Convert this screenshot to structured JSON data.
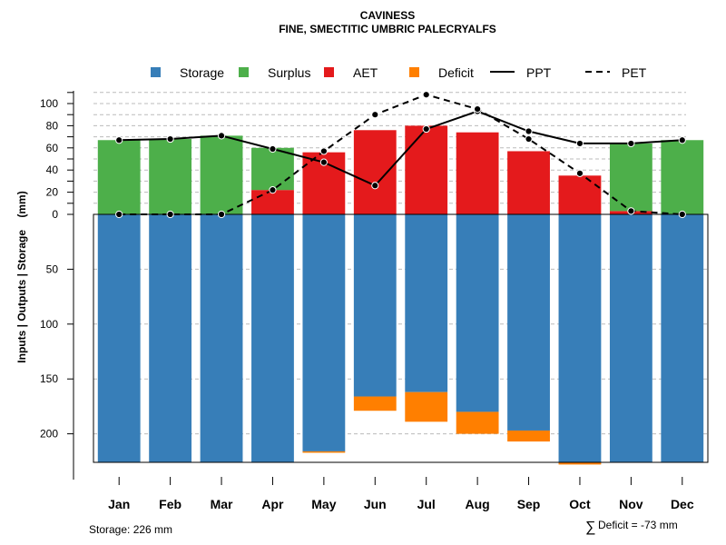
{
  "title": "CAVINESS",
  "subtitle": "FINE, SMECTITIC UMBRIC PALECRYALFS",
  "colors": {
    "storage": "#377eb8",
    "surplus": "#4daf4a",
    "aet": "#e41a1c",
    "deficit": "#ff7f00",
    "grid": "#bbbbbb"
  },
  "footer": {
    "storage_note": "Storage: 226 mm",
    "deficit_symbol": "∑",
    "deficit_note": "Deficit = -73 mm"
  },
  "chart_data": {
    "type": "bar",
    "categories": [
      "Jan",
      "Feb",
      "Mar",
      "Apr",
      "May",
      "Jun",
      "Jul",
      "Aug",
      "Sep",
      "Oct",
      "Nov",
      "Dec"
    ],
    "ylabel": "Inputs | Outputs | Storage    (mm)",
    "upper_ticks": [
      0,
      20,
      40,
      60,
      80,
      100
    ],
    "lower_ticks": [
      50,
      100,
      150,
      200
    ],
    "ylim_upper": [
      0,
      110
    ],
    "ylim_lower": [
      0,
      226
    ],
    "legend": [
      {
        "label": "Storage",
        "kind": "square",
        "color_key": "storage"
      },
      {
        "label": "Surplus",
        "kind": "square",
        "color_key": "surplus"
      },
      {
        "label": "AET",
        "kind": "square",
        "color_key": "aet"
      },
      {
        "label": "Deficit",
        "kind": "square",
        "color_key": "deficit"
      },
      {
        "label": "PPT",
        "kind": "solid"
      },
      {
        "label": "PET",
        "kind": "dashed"
      }
    ],
    "series": [
      {
        "name": "AET",
        "values": [
          0,
          0,
          0,
          22,
          56,
          76,
          80,
          74,
          57,
          35,
          3,
          0
        ]
      },
      {
        "name": "Surplus",
        "values": [
          67,
          68,
          71,
          38,
          0,
          0,
          0,
          0,
          0,
          0,
          61,
          67
        ]
      },
      {
        "name": "Storage",
        "values": [
          226,
          226,
          226,
          226,
          216,
          166,
          162,
          180,
          197,
          226,
          226,
          226
        ]
      },
      {
        "name": "Deficit",
        "values": [
          0,
          0,
          0,
          0,
          1,
          13,
          27,
          20,
          10,
          2,
          0,
          0
        ]
      },
      {
        "name": "PPT",
        "values": [
          67,
          68,
          71,
          59,
          47,
          26,
          77,
          93,
          75,
          64,
          64,
          67
        ]
      },
      {
        "name": "PET",
        "values": [
          0,
          0,
          0,
          22,
          57,
          90,
          108,
          95,
          68,
          37,
          3,
          0
        ]
      }
    ]
  }
}
